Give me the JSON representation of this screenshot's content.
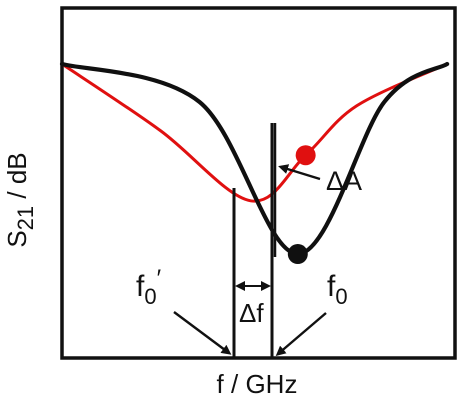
{
  "chart_data": {
    "type": "line",
    "xlabel": "f / GHz",
    "ylabel": {
      "main": "S",
      "subscript": "21",
      "suffix": " / dB"
    },
    "x_ticks_shown": false,
    "y_ticks_shown": false,
    "grid": false,
    "series": [
      {
        "color": "#e01010",
        "points": [
          [
            0.0,
            0.0
          ],
          [
            0.25,
            -0.35
          ],
          [
            0.48,
            -0.72
          ],
          [
            0.62,
            -0.48
          ],
          [
            0.75,
            -0.22
          ],
          [
            0.98,
            0.0
          ]
        ]
      },
      {
        "color": "#101010",
        "points": [
          [
            0.0,
            0.0
          ],
          [
            0.35,
            -0.2
          ],
          [
            0.6,
            -1.0
          ],
          [
            0.82,
            -0.2
          ],
          [
            0.98,
            0.0
          ]
        ]
      }
    ],
    "markers": [
      {
        "color": "#e01010",
        "x": 0.62,
        "y": -0.48
      },
      {
        "color": "#101010",
        "x": 0.6,
        "y": -1.0
      }
    ],
    "annotations": {
      "delta_a": "ΔA",
      "delta_f": "Δf",
      "f0_prime_base": "f",
      "f0_prime_sub": "0",
      "f0_prime_mark": "′",
      "f0_base": "f",
      "f0_sub": "0"
    }
  }
}
